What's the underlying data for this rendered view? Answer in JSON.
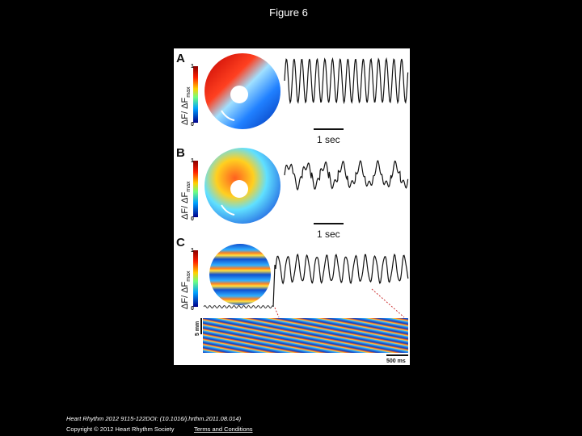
{
  "header": {
    "title": "Figure 6"
  },
  "figure": {
    "panels": [
      {
        "label": "A",
        "colorbar_max": "1",
        "colorbar_min": "0",
        "axis_label": {
          "main": "ΔF/ ΔF",
          "sub": "max"
        },
        "scale_bar": "1 sec"
      },
      {
        "label": "B",
        "colorbar_max": "1",
        "colorbar_min": "0",
        "axis_label": {
          "main": "ΔF/ ΔF",
          "sub": "max"
        },
        "scale_bar": "1 sec"
      },
      {
        "label": "C",
        "colorbar_max": "1",
        "colorbar_min": "0",
        "axis_label": {
          "main": "ΔF/ ΔF",
          "sub": "max"
        },
        "space_bar": "5 mm",
        "time_bar": "500 ms"
      }
    ]
  },
  "footer": {
    "citation": "Heart Rhythm 2012 9115-122DOI: (10.1016/j.hrthm.2011.08.014)",
    "copyright": "Copyright © 2012 Heart Rhythm Society",
    "link": "Terms and Conditions"
  }
}
